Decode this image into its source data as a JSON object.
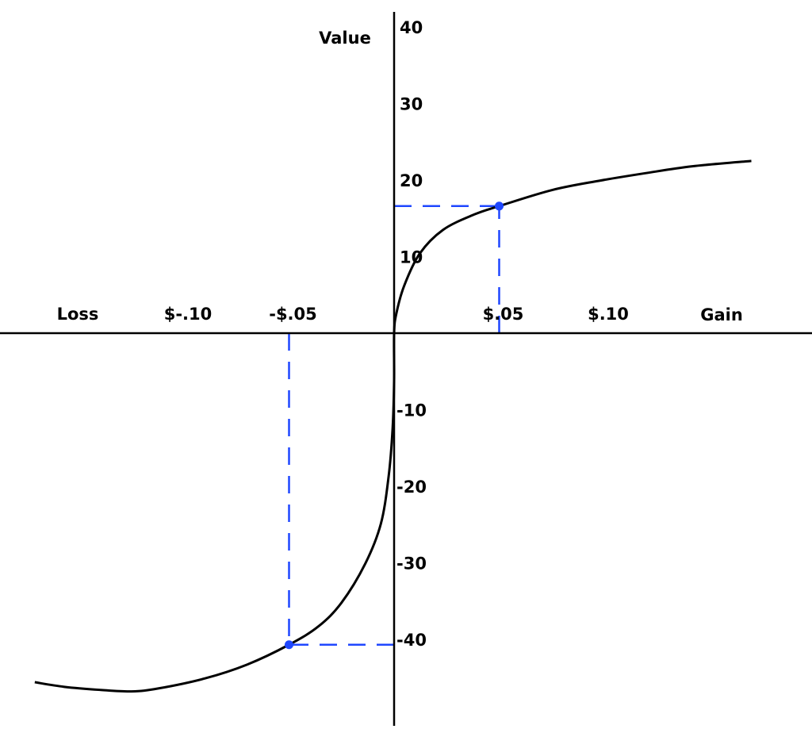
{
  "chart_data": {
    "type": "line",
    "title": "",
    "xlabel_left": "Loss",
    "xlabel_right": "Gain",
    "ylabel": "Value",
    "x_ticks": [
      {
        "value": -0.1,
        "label": "$-.10"
      },
      {
        "value": -0.05,
        "label": "-$.05"
      },
      {
        "value": 0.05,
        "label": "$.05"
      },
      {
        "value": 0.1,
        "label": "$.10"
      }
    ],
    "y_ticks": [
      {
        "value": 40,
        "label": "40"
      },
      {
        "value": 30,
        "label": "30"
      },
      {
        "value": 20,
        "label": "20"
      },
      {
        "value": 10,
        "label": "10"
      },
      {
        "value": -10,
        "label": "-10"
      },
      {
        "value": -20,
        "label": "-20"
      },
      {
        "value": -30,
        "label": "-30"
      },
      {
        "value": -40,
        "label": "-40"
      }
    ],
    "xlim": [
      -0.17,
      0.19
    ],
    "ylim": [
      -51,
      42
    ],
    "grid": false,
    "series": [
      {
        "color": "#000000",
        "points": [
          [
            -0.171,
            -45.6
          ],
          [
            -0.157,
            -46.2
          ],
          [
            -0.14,
            -46.6
          ],
          [
            -0.125,
            -46.8
          ],
          [
            -0.112,
            -46.4
          ],
          [
            -0.09,
            -45.1
          ],
          [
            -0.07,
            -43.3
          ],
          [
            -0.05,
            -40.7
          ],
          [
            -0.036,
            -38.3
          ],
          [
            -0.025,
            -35.2
          ],
          [
            -0.0137,
            -30.1
          ],
          [
            -0.0063,
            -24.9
          ],
          [
            -0.0026,
            -18.7
          ],
          [
            -0.0007,
            -12.4
          ],
          [
            0,
            -6.2
          ],
          [
            0,
            0
          ],
          [
            0.0011,
            2.6
          ],
          [
            0.0048,
            6.2
          ],
          [
            0.0122,
            10.4
          ],
          [
            0.0233,
            13.5
          ],
          [
            0.0381,
            15.5
          ],
          [
            0.05,
            16.6
          ],
          [
            0.0752,
            18.7
          ],
          [
            0.0974,
            19.9
          ],
          [
            0.1196,
            20.9
          ],
          [
            0.1419,
            21.8
          ],
          [
            0.17,
            22.5
          ]
        ]
      }
    ],
    "highlight_points": [
      {
        "x": 0.05,
        "y": 16.6,
        "color": "#1f47ff"
      },
      {
        "x": -0.05,
        "y": -40.7,
        "color": "#1f47ff"
      }
    ]
  }
}
